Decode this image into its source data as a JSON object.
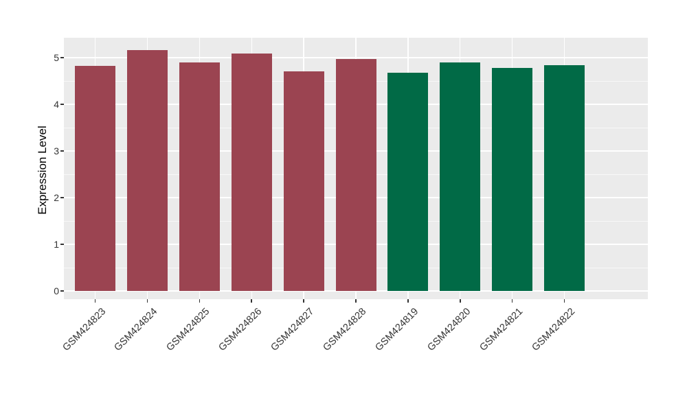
{
  "chart_data": {
    "type": "bar",
    "title": "",
    "xlabel": "",
    "ylabel": "Expression Level",
    "categories": [
      "GSM424823",
      "GSM424824",
      "GSM424825",
      "GSM424826",
      "GSM424827",
      "GSM424828",
      "GSM424819",
      "GSM424820",
      "GSM424821",
      "GSM424822"
    ],
    "values": [
      4.83,
      5.16,
      4.9,
      5.09,
      4.71,
      4.97,
      4.68,
      4.9,
      4.78,
      4.84
    ],
    "bar_colors": [
      "#9B4451",
      "#9B4451",
      "#9B4451",
      "#9B4451",
      "#9B4451",
      "#9B4451",
      "#016A46",
      "#016A46",
      "#016A46",
      "#016A46"
    ],
    "groups": [
      {
        "color": "#9B4451",
        "categories": [
          "GSM424823",
          "GSM424824",
          "GSM424825",
          "GSM424826",
          "GSM424827",
          "GSM424828"
        ]
      },
      {
        "color": "#016A46",
        "categories": [
          "GSM424819",
          "GSM424820",
          "GSM424821",
          "GSM424822"
        ]
      }
    ],
    "yticks": [
      0,
      1,
      2,
      3,
      4,
      5
    ],
    "minor_yticks": [
      0.5,
      1.5,
      2.5,
      3.5,
      4.5
    ],
    "ylim": [
      -0.18,
      5.43
    ],
    "grid": true,
    "legend": false,
    "x_tick_rotation": -45,
    "panel_bg": "#EBEBEB",
    "grid_color": "#FFFFFF",
    "tick_label_color": "#333333"
  }
}
